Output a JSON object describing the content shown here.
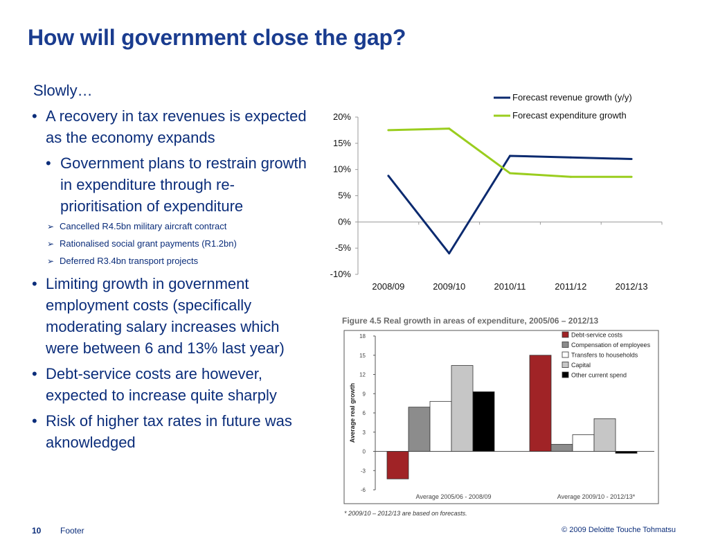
{
  "slide": {
    "title": "How will government close the gap?",
    "lead": "Slowly…",
    "bullets": [
      "A recovery in tax revenues is expected as the economy expands",
      "Government plans to restrain growth in expenditure  through re-prioritisation of expenditure",
      "Cancelled R4.5bn military aircraft contract",
      "Rationalised social grant payments (R1.2bn)",
      "Deferred R3.4bn transport projects",
      "Limiting growth in government employment costs (specifically moderating salary increases which were between 6 and 13% last year)",
      "Debt-service costs are however, expected to  increase quite sharply",
      "Risk of higher tax rates in future was aknowledged"
    ],
    "bullet_char": "•",
    "arrow_char": "➢"
  },
  "footer": {
    "page": "10",
    "label": "Footer",
    "copyright": "© 2009 Deloitte Touche Tohmatsu"
  },
  "chart_data": [
    {
      "type": "line",
      "title": "",
      "x": [
        "2008/09",
        "2009/10",
        "2010/11",
        "2011/12",
        "2012/13"
      ],
      "series": [
        {
          "name": "Forecast revenue growth (y/y)",
          "values": [
            8.8,
            -6.0,
            12.6,
            12.3,
            12.0
          ],
          "color": "#0b2a6f"
        },
        {
          "name": "Forecast expenditure growth",
          "values": [
            17.5,
            17.8,
            9.3,
            8.6,
            8.6
          ],
          "color": "#9acd1e"
        }
      ],
      "ylim": [
        -10,
        20
      ],
      "yticks": [
        20,
        15,
        10,
        5,
        0,
        -5,
        -10
      ],
      "ytick_labels": [
        "20%",
        "15%",
        "10%",
        "5%",
        "0%",
        "-5%",
        "-10%"
      ],
      "xlabel": "",
      "ylabel": "",
      "legend": "top-right",
      "grid": false
    },
    {
      "type": "bar",
      "title": "Figure 4.5  Real growth in areas of expenditure, 2005/06 – 2012/13",
      "categories": [
        "Average 2005/06 - 2008/09",
        "Average 2009/10 - 2012/13*"
      ],
      "series": [
        {
          "name": "Debt-service costs",
          "values": [
            -4.3,
            15.0
          ],
          "color": "#a02326"
        },
        {
          "name": "Compensation of employees",
          "values": [
            6.9,
            1.1
          ],
          "color": "#8c8c8c"
        },
        {
          "name": "Transfers to households",
          "values": [
            7.8,
            2.6
          ],
          "color": "#ffffff"
        },
        {
          "name": "Capital",
          "values": [
            13.4,
            5.1
          ],
          "color": "#c6c6c6"
        },
        {
          "name": "Other current spend",
          "values": [
            9.3,
            -0.3
          ],
          "color": "#000000"
        }
      ],
      "ylim": [
        -6,
        18
      ],
      "yticks": [
        18,
        15,
        12,
        9,
        6,
        3,
        0,
        -3,
        -6
      ],
      "ylabel": "Average real growth",
      "xlabel": "",
      "legend": "top-right",
      "grid": false,
      "note": "* 2009/10 – 2012/13 are based on forecasts."
    }
  ]
}
